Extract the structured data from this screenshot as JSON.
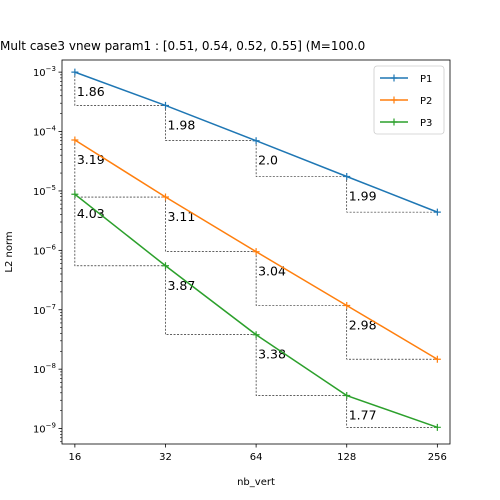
{
  "chart_data": {
    "type": "line",
    "title": "Mult case3 vnew param1 : [0.51, 0.54, 0.52, 0.55] (M=100.0",
    "xlabel": "nb_vert",
    "ylabel": "L2 norm",
    "x_scale": "log2",
    "y_scale": "log10",
    "x": [
      16,
      32,
      64,
      128,
      256
    ],
    "x_tick_labels": [
      "16",
      "32",
      "64",
      "128",
      "256"
    ],
    "xlim": [
      14.5,
      282
    ],
    "ylim": [
      5.5e-10,
      0.0016
    ],
    "y_ticks": [
      {
        "base": "10",
        "exp": "−3",
        "value": 0.001
      },
      {
        "base": "10",
        "exp": "−4",
        "value": 0.0001
      },
      {
        "base": "10",
        "exp": "−5",
        "value": 1e-05
      },
      {
        "base": "10",
        "exp": "−6",
        "value": 1e-06
      },
      {
        "base": "10",
        "exp": "−7",
        "value": 1e-07
      },
      {
        "base": "10",
        "exp": "−8",
        "value": 1e-08
      },
      {
        "base": "10",
        "exp": "−9",
        "value": 1e-09
      }
    ],
    "grid": false,
    "legend_position": "top-right",
    "series": [
      {
        "name": "P1",
        "color": "#1f77b4",
        "values": [
          0.001,
          0.000275,
          7e-05,
          1.75e-05,
          4.4e-06
        ],
        "rates": [
          "1.86",
          "1.98",
          "2.0",
          "1.99"
        ]
      },
      {
        "name": "P2",
        "color": "#ff7f0e",
        "values": [
          7.2e-05,
          7.9e-06,
          9.5e-07,
          1.18e-07,
          1.47e-08
        ],
        "rates": [
          "3.19",
          "3.11",
          "3.04",
          "2.98"
        ]
      },
      {
        "name": "P3",
        "color": "#2ca02c",
        "values": [
          8.8e-06,
          5.5e-07,
          3.8e-08,
          3.6e-09,
          1.05e-09
        ],
        "rates": [
          "4.03",
          "3.87",
          "3.38",
          "1.77"
        ]
      }
    ]
  }
}
